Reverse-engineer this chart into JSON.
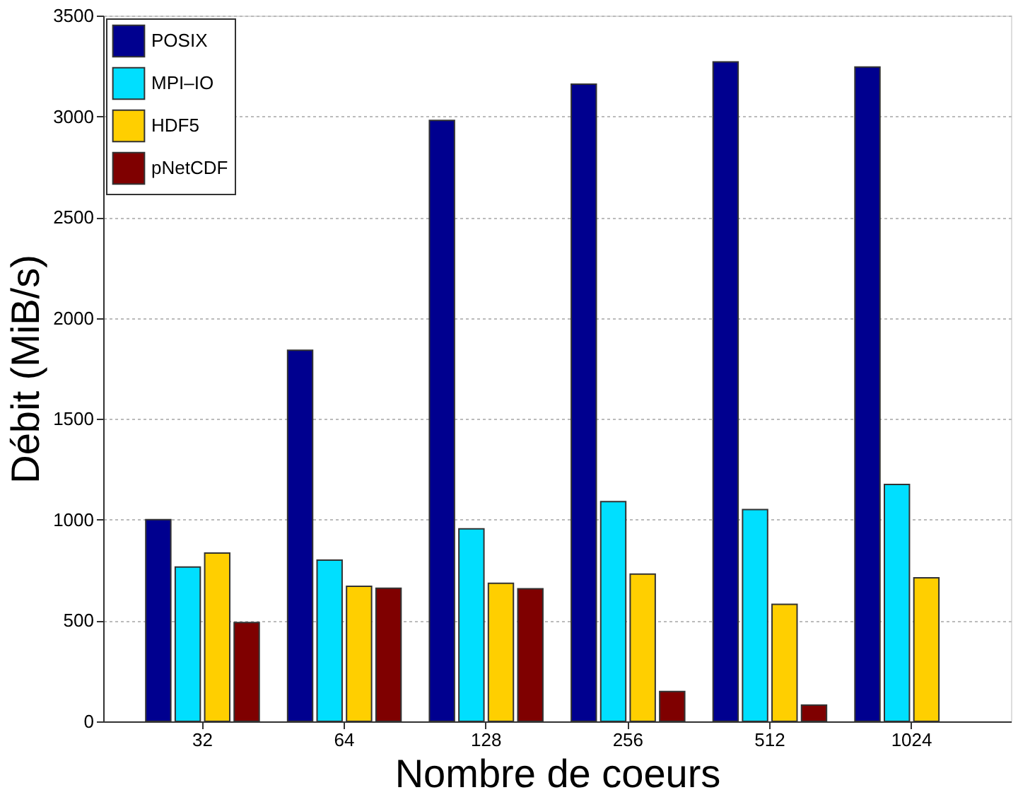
{
  "chart_data": {
    "type": "bar",
    "xlabel": "Nombre de coeurs",
    "ylabel": "Débit (MiB/s)",
    "categories": [
      "32",
      "64",
      "128",
      "256",
      "512",
      "1024"
    ],
    "series": [
      {
        "name": "POSIX",
        "color": "#00008f",
        "values": [
          1000,
          1840,
          2980,
          3160,
          3270,
          3245
        ]
      },
      {
        "name": "MPI–IO",
        "color": "#00dfff",
        "values": [
          765,
          800,
          955,
          1090,
          1050,
          1175
        ]
      },
      {
        "name": "HDF5",
        "color": "#ffcf00",
        "values": [
          835,
          670,
          685,
          730,
          580,
          712
        ]
      },
      {
        "name": "pNetCDF",
        "color": "#7f0000",
        "values": [
          490,
          660,
          658,
          148,
          81,
          null
        ]
      }
    ],
    "ylim": [
      0,
      3500
    ],
    "yticks": [
      0,
      500,
      1000,
      1500,
      2000,
      2500,
      3000,
      3500
    ],
    "grid": "y",
    "legend": "top left"
  }
}
